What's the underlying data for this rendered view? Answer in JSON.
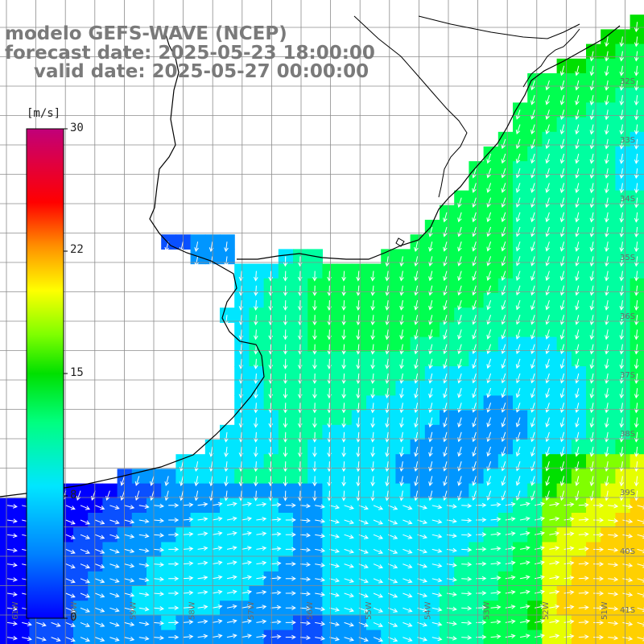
{
  "title": {
    "model": "modelo GEFS-WAVE (NCEP)",
    "forecast_date": "forecast date: 2025-05-23 18:00:00",
    "valid_date": "valid date: 2025-05-27 00:00:00"
  },
  "colorbar": {
    "units": "[m/s]",
    "ticks": [
      "30",
      "22",
      "15",
      "8",
      "0"
    ],
    "min": 0,
    "max": 30,
    "colors": [
      "#0000ff",
      "#0080ff",
      "#00e0ff",
      "#00ff80",
      "#00e000",
      "#80ff00",
      "#ffff00",
      "#ff9000",
      "#ff0000",
      "#d00060",
      "#c0007a"
    ]
  },
  "axes": {
    "lat_labels": [
      "32S",
      "33S",
      "34S",
      "35S",
      "36S",
      "37S",
      "38S",
      "39S",
      "40S",
      "41S"
    ],
    "lon_labels": [
      "61W",
      "60W",
      "59W",
      "58W",
      "57W",
      "56W",
      "55W",
      "54W",
      "53W",
      "52W",
      "51W"
    ]
  },
  "map": {
    "variable": "wind speed and direction",
    "land_color": "#ffffff",
    "coast_color": "#000000",
    "grid_color": "#8c8c8c"
  }
}
